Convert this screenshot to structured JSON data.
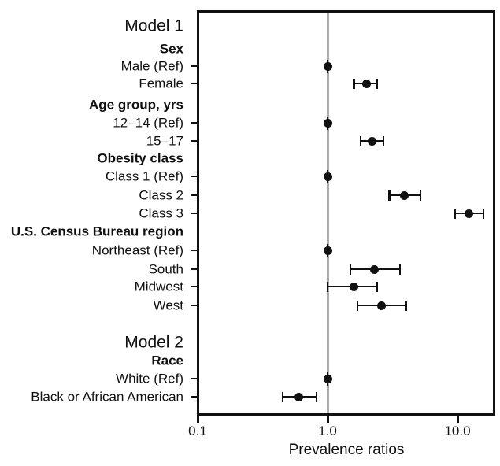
{
  "chart_data": {
    "type": "scatter",
    "variant": "forest-plot",
    "xlabel": "Prevalence ratios",
    "x_scale": "log10",
    "xlim": [
      0.1,
      19.6
    ],
    "x_ticks": [
      0.1,
      1.0,
      10.0
    ],
    "x_tick_labels": [
      "0.1",
      "1.0",
      "10.0"
    ],
    "reference_line_x": 1.0,
    "grid": "off",
    "legend": "none",
    "colors": {
      "marker": "#111111",
      "reference_line": "#ababab",
      "frame": "#111111"
    },
    "rows": [
      {
        "label": "Model 1",
        "kind": "model-header"
      },
      {
        "label": "Sex",
        "kind": "group-header"
      },
      {
        "label": "Male (Ref)",
        "kind": "reference",
        "pr": 1.0
      },
      {
        "label": "Female",
        "kind": "estimate",
        "pr": 2.0,
        "ci_low": 1.6,
        "ci_high": 2.4
      },
      {
        "label": "Age group, yrs",
        "kind": "group-header"
      },
      {
        "label": "12–14 (Ref)",
        "kind": "reference",
        "pr": 1.0
      },
      {
        "label": "15–17",
        "kind": "estimate",
        "pr": 2.2,
        "ci_low": 1.8,
        "ci_high": 2.7
      },
      {
        "label": "Obesity class",
        "kind": "group-header"
      },
      {
        "label": "Class 1 (Ref)",
        "kind": "reference",
        "pr": 1.0
      },
      {
        "label": "Class 2",
        "kind": "estimate",
        "pr": 3.9,
        "ci_low": 3.0,
        "ci_high": 5.2
      },
      {
        "label": "Class 3",
        "kind": "estimate",
        "pr": 12.2,
        "ci_low": 9.5,
        "ci_high": 15.9
      },
      {
        "label": "U.S. Census Bureau region",
        "kind": "group-header"
      },
      {
        "label": "Northeast (Ref)",
        "kind": "reference",
        "pr": 1.0
      },
      {
        "label": "South",
        "kind": "estimate",
        "pr": 2.3,
        "ci_low": 1.5,
        "ci_high": 3.6
      },
      {
        "label": "Midwest",
        "kind": "estimate",
        "pr": 1.6,
        "ci_low": 1.0,
        "ci_high": 2.4
      },
      {
        "label": "West",
        "kind": "estimate",
        "pr": 2.6,
        "ci_low": 1.7,
        "ci_high": 4.0
      },
      {
        "label": "",
        "kind": "spacer"
      },
      {
        "label": "Model 2",
        "kind": "model-header"
      },
      {
        "label": "Race",
        "kind": "group-header"
      },
      {
        "label": "White (Ref)",
        "kind": "reference",
        "pr": 1.0
      },
      {
        "label": "Black or African American",
        "kind": "estimate",
        "pr": 0.6,
        "ci_low": 0.45,
        "ci_high": 0.82
      }
    ]
  }
}
